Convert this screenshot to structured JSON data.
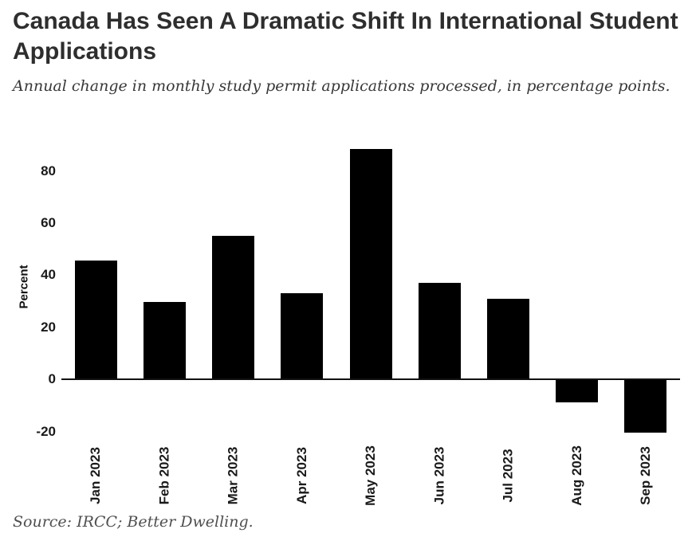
{
  "title": "Canada Has Seen A Dramatic Shift In International Student Applications",
  "subtitle": "Annual change in monthly study permit applications processed, in percentage points.",
  "source_note": "Source: IRCC; Better Dwelling.",
  "colors": {
    "background": "#ffffff",
    "title": "#2e2e2e",
    "subtitle": "#383838",
    "tick_labels": "#1a1a1a",
    "axis_line": "#111111",
    "source": "#4f4f4f",
    "bar": "#000000"
  },
  "chart_data": {
    "type": "bar",
    "title": "Canada Has Seen A Dramatic Shift In International Student Applications",
    "subtitle": "Annual change in monthly study permit applications processed, in percentage points.",
    "source": "Source: IRCC; Better Dwelling.",
    "categories": [
      "Jan 2023",
      "Feb 2023",
      "Mar 2023",
      "Apr 2023",
      "May 2023",
      "Jun 2023",
      "Jul 2023",
      "Aug 2023",
      "Sep 2023"
    ],
    "values": [
      45.6,
      29.6,
      55.1,
      33.2,
      88.5,
      37.2,
      30.9,
      -8.8,
      -20.3
    ],
    "xlabel": "",
    "ylabel": "Percent",
    "ylim": [
      -25,
      93
    ],
    "yticks": [
      -20,
      0,
      20,
      40,
      60,
      80
    ],
    "bar_color": "#000000",
    "grid": false,
    "legend": false
  }
}
